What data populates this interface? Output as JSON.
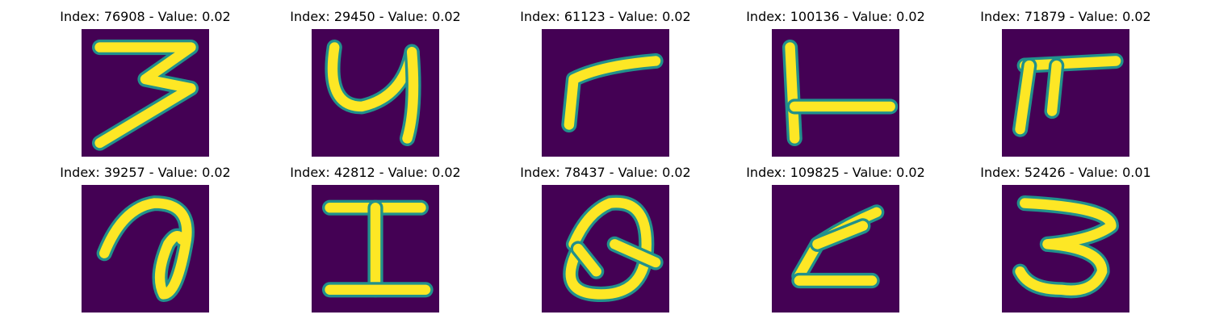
{
  "colors": {
    "background": "#440154",
    "stroke_edge": "#21918c",
    "stroke_core": "#fde725"
  },
  "panels": [
    {
      "title": "Index: 76908 - Value: 0.02",
      "index": 76908,
      "value": 0.02
    },
    {
      "title": "Index: 29450 - Value: 0.02",
      "index": 29450,
      "value": 0.02
    },
    {
      "title": "Index: 61123 - Value: 0.02",
      "index": 61123,
      "value": 0.02
    },
    {
      "title": "Index: 100136 - Value: 0.02",
      "index": 100136,
      "value": 0.02
    },
    {
      "title": "Index: 71879 - Value: 0.02",
      "index": 71879,
      "value": 0.02
    },
    {
      "title": "Index: 39257 - Value: 0.02",
      "index": 39257,
      "value": 0.02
    },
    {
      "title": "Index: 42812 - Value: 0.02",
      "index": 42812,
      "value": 0.02
    },
    {
      "title": "Index: 78437 - Value: 0.02",
      "index": 78437,
      "value": 0.02
    },
    {
      "title": "Index: 109825 - Value: 0.02",
      "index": 109825,
      "value": 0.02
    },
    {
      "title": "Index: 52426 - Value: 0.01",
      "index": 52426,
      "value": 0.01
    }
  ]
}
